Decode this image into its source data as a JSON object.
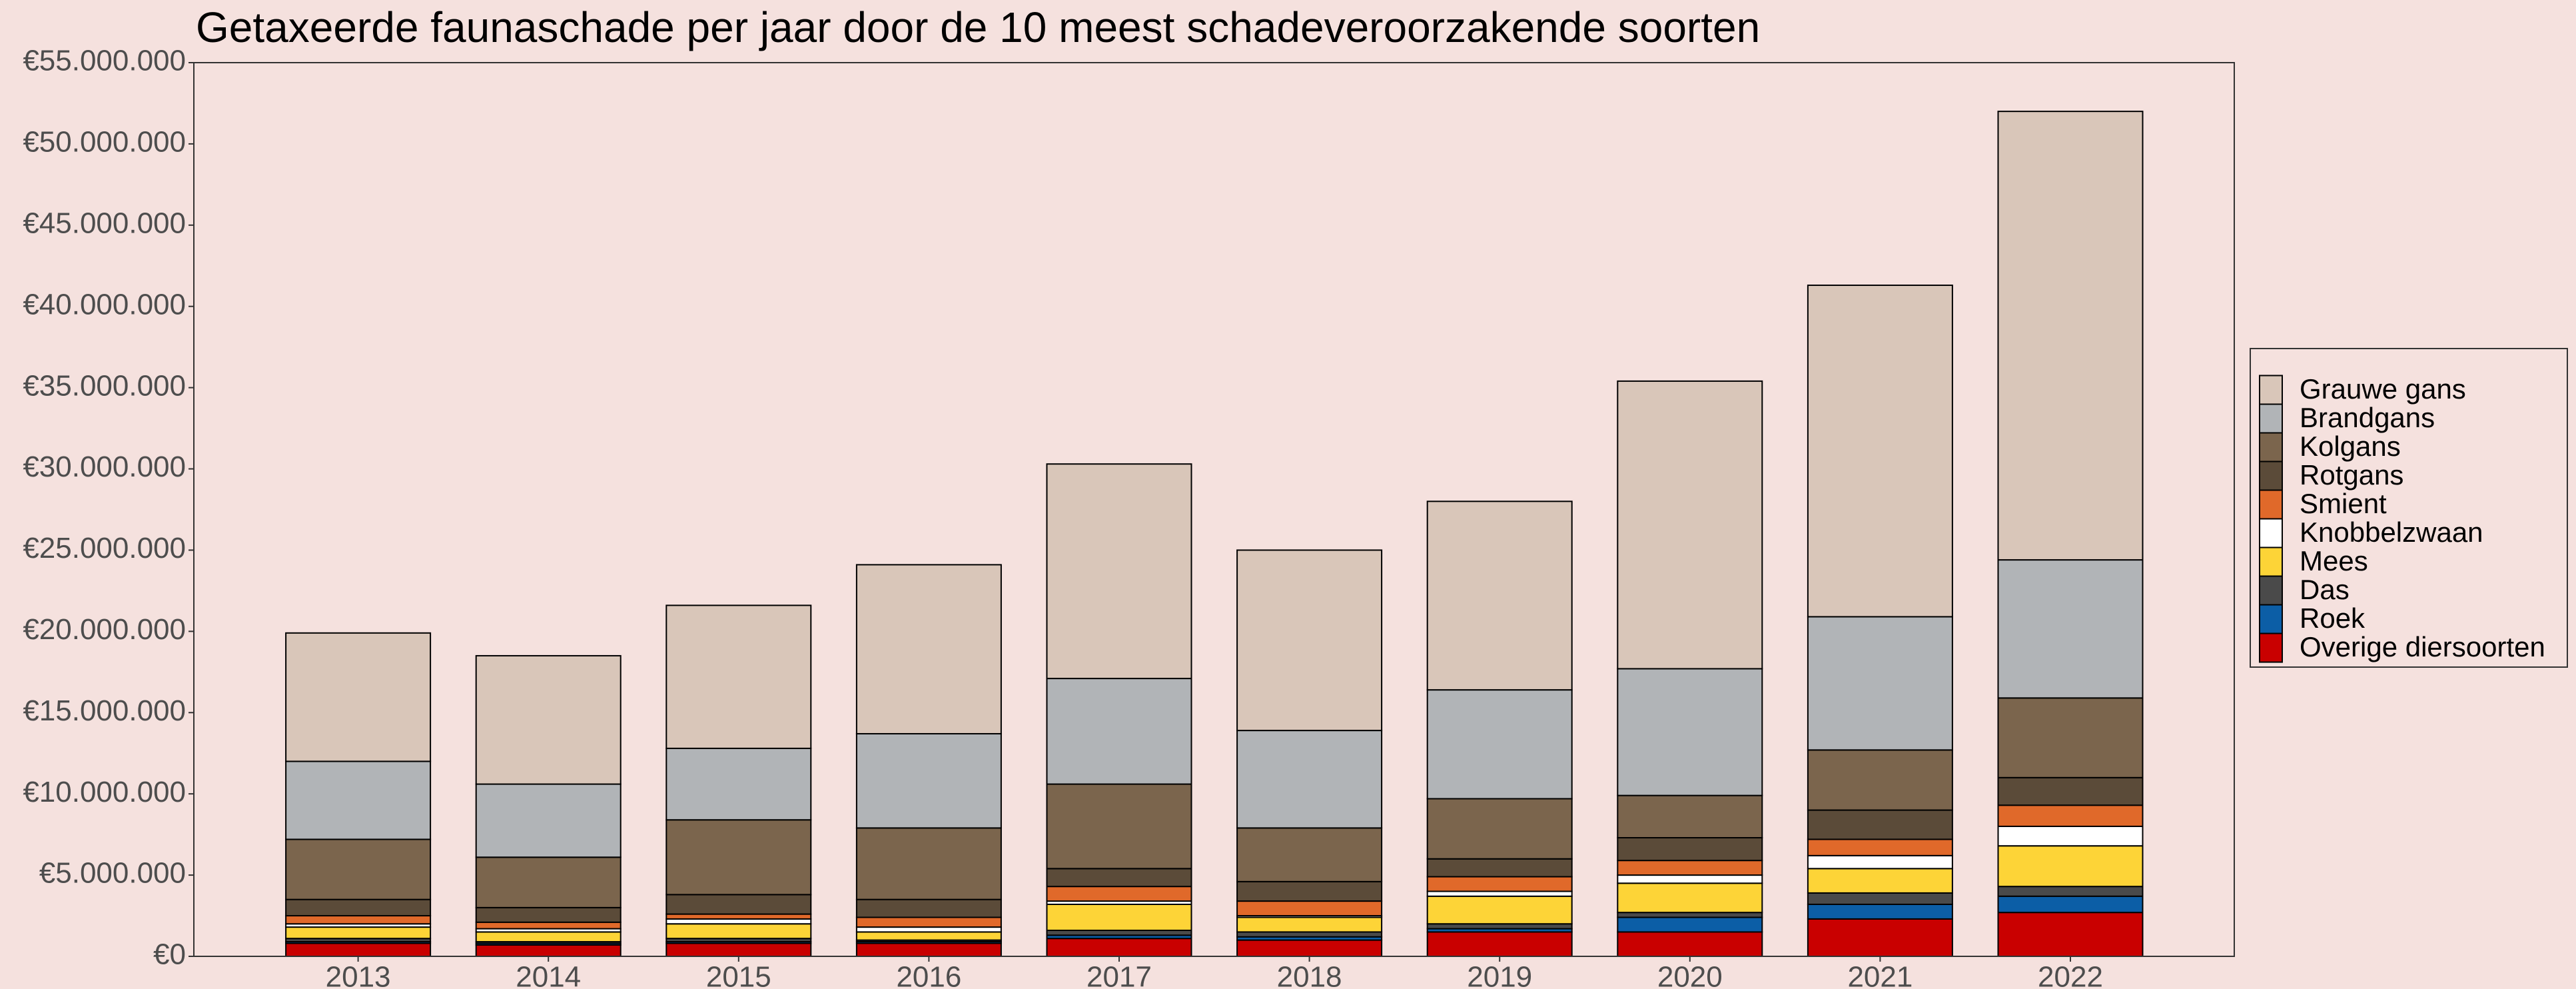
{
  "chart_data": {
    "type": "stacked_bar",
    "title": "Getaxeerde faunaschade per jaar door de 10 meest schadeveroorzakende soorten",
    "categories": [
      "2013",
      "2014",
      "2015",
      "2016",
      "2017",
      "2018",
      "2019",
      "2020",
      "2021",
      "2022"
    ],
    "series": [
      {
        "name": "Grauwe gans",
        "color": "#d9c6b9",
        "values": [
          7900000,
          7900000,
          8800000,
          10400000,
          13200000,
          11100000,
          11600000,
          17700000,
          20400000,
          27600000
        ]
      },
      {
        "name": "Brandgans",
        "color": "#b1b4b7",
        "values": [
          4800000,
          4500000,
          4400000,
          5800000,
          6500000,
          6000000,
          6700000,
          7800000,
          8200000,
          8500000
        ]
      },
      {
        "name": "Kolgans",
        "color": "#7b654d",
        "values": [
          3700000,
          3100000,
          4600000,
          4400000,
          5200000,
          3300000,
          3700000,
          2600000,
          3700000,
          4900000
        ]
      },
      {
        "name": "Rotgans",
        "color": "#5b4b39",
        "values": [
          1000000,
          900000,
          1200000,
          1100000,
          1100000,
          1200000,
          1100000,
          1400000,
          1800000,
          1700000
        ]
      },
      {
        "name": "Smient",
        "color": "#e0692a",
        "values": [
          500000,
          400000,
          300000,
          600000,
          900000,
          900000,
          900000,
          900000,
          1000000,
          1300000
        ]
      },
      {
        "name": "Knobbelzwaan",
        "color": "#ffffff",
        "values": [
          200000,
          200000,
          300000,
          300000,
          200000,
          100000,
          300000,
          500000,
          800000,
          1200000
        ]
      },
      {
        "name": "Mees",
        "color": "#fdd437",
        "values": [
          700000,
          600000,
          900000,
          500000,
          1600000,
          900000,
          1700000,
          1800000,
          1500000,
          2500000
        ]
      },
      {
        "name": "Das",
        "color": "#4a4a4a",
        "values": [
          200000,
          100000,
          200000,
          100000,
          300000,
          300000,
          300000,
          300000,
          700000,
          600000
        ]
      },
      {
        "name": "Roek",
        "color": "#0c5ea6",
        "values": [
          100000,
          100000,
          100000,
          100000,
          200000,
          200000,
          200000,
          900000,
          900000,
          1000000
        ]
      },
      {
        "name": "Overige diersoorten",
        "color": "#c90000",
        "values": [
          800000,
          700000,
          800000,
          800000,
          1100000,
          1000000,
          1500000,
          1500000,
          2300000,
          2700000
        ]
      }
    ],
    "ylim": [
      0,
      55000000
    ],
    "yticks": [
      {
        "value": 0,
        "label": "€0"
      },
      {
        "value": 5000000,
        "label": "€5.000.000"
      },
      {
        "value": 10000000,
        "label": "€10.000.000"
      },
      {
        "value": 15000000,
        "label": "€15.000.000"
      },
      {
        "value": 20000000,
        "label": "€20.000.000"
      },
      {
        "value": 25000000,
        "label": "€25.000.000"
      },
      {
        "value": 30000000,
        "label": "€30.000.000"
      },
      {
        "value": 35000000,
        "label": "€35.000.000"
      },
      {
        "value": 40000000,
        "label": "€40.000.000"
      },
      {
        "value": 45000000,
        "label": "€45.000.000"
      },
      {
        "value": 50000000,
        "label": "€50.000.000"
      },
      {
        "value": 55000000,
        "label": "€55.000.000"
      }
    ],
    "grid": false,
    "legend": "right"
  }
}
